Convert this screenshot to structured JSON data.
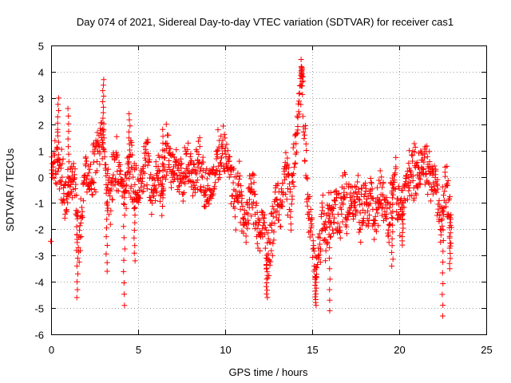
{
  "chart_data": {
    "type": "scatter",
    "title": "Day 074 of 2021, Sidereal Day-to-day VTEC variation (SDTVAR) for receiver cas1",
    "xlabel": "GPS time / hours",
    "ylabel": "SDTVAR / TECUs",
    "xlim": [
      0,
      25
    ],
    "ylim": [
      -6,
      5
    ],
    "xticks": [
      0,
      5,
      10,
      15,
      20,
      25
    ],
    "yticks": [
      -6,
      -5,
      -4,
      -3,
      -2,
      -1,
      0,
      1,
      2,
      3,
      4,
      5
    ],
    "grid": true,
    "marker": "+",
    "color": "#ff0000",
    "series": [
      {
        "name": "SDTVAR",
        "trend": [
          [
            0.0,
            0.3
          ],
          [
            0.2,
            0.8
          ],
          [
            0.4,
            0.6
          ],
          [
            0.6,
            0.1
          ],
          [
            0.8,
            -0.8
          ],
          [
            1.0,
            -0.3
          ],
          [
            1.2,
            0.2
          ],
          [
            1.4,
            -0.6
          ],
          [
            1.6,
            -2.6
          ],
          [
            1.8,
            -1.0
          ],
          [
            2.0,
            0.3
          ],
          [
            2.2,
            -0.3
          ],
          [
            2.4,
            0.3
          ],
          [
            2.6,
            0.7
          ],
          [
            2.8,
            1.2
          ],
          [
            3.0,
            1.6
          ],
          [
            3.2,
            -0.3
          ],
          [
            3.4,
            -0.8
          ],
          [
            3.6,
            0.2
          ],
          [
            3.8,
            0.6
          ],
          [
            4.0,
            0.0
          ],
          [
            4.2,
            -0.6
          ],
          [
            4.4,
            -0.2
          ],
          [
            4.6,
            0.4
          ],
          [
            4.8,
            -0.3
          ],
          [
            5.0,
            -0.6
          ],
          [
            5.2,
            0.2
          ],
          [
            5.4,
            0.7
          ],
          [
            5.6,
            0.3
          ],
          [
            5.8,
            -0.7
          ],
          [
            6.0,
            -0.3
          ],
          [
            6.2,
            0.5
          ],
          [
            6.4,
            -0.8
          ],
          [
            6.6,
            0.9
          ],
          [
            6.8,
            0.6
          ],
          [
            7.0,
            0.1
          ],
          [
            7.2,
            0.5
          ],
          [
            7.4,
            0.2
          ],
          [
            7.6,
            0.3
          ],
          [
            7.8,
            0.6
          ],
          [
            8.0,
            0.4
          ],
          [
            8.2,
            -0.2
          ],
          [
            8.4,
            0.2
          ],
          [
            8.6,
            0.5
          ],
          [
            8.8,
            -0.3
          ],
          [
            9.0,
            -0.5
          ],
          [
            9.2,
            -0.2
          ],
          [
            9.4,
            0.1
          ],
          [
            9.6,
            0.6
          ],
          [
            9.8,
            1.0
          ],
          [
            10.0,
            0.9
          ],
          [
            10.2,
            0.4
          ],
          [
            10.4,
            -0.3
          ],
          [
            10.6,
            -0.8
          ],
          [
            10.8,
            -0.2
          ],
          [
            11.0,
            -1.6
          ],
          [
            11.2,
            -1.9
          ],
          [
            11.4,
            -0.9
          ],
          [
            11.6,
            -0.6
          ],
          [
            11.8,
            -1.8
          ],
          [
            12.0,
            -2.4
          ],
          [
            12.2,
            -1.6
          ],
          [
            12.4,
            -3.2
          ],
          [
            12.6,
            -2.6
          ],
          [
            12.8,
            -1.6
          ],
          [
            13.0,
            -0.9
          ],
          [
            13.2,
            -1.4
          ],
          [
            13.4,
            0.3
          ],
          [
            13.6,
            -0.5
          ],
          [
            13.8,
            -1.0
          ],
          [
            14.0,
            1.0
          ],
          [
            14.2,
            2.5
          ],
          [
            14.4,
            3.8
          ],
          [
            14.6,
            1.2
          ],
          [
            14.8,
            -1.2
          ],
          [
            15.0,
            -2.4
          ],
          [
            15.2,
            -3.8
          ],
          [
            15.4,
            -2.8
          ],
          [
            15.6,
            -1.4
          ],
          [
            15.8,
            -2.6
          ],
          [
            16.0,
            -1.1
          ],
          [
            16.2,
            -1.8
          ],
          [
            16.4,
            -1.0
          ],
          [
            16.6,
            -1.5
          ],
          [
            16.8,
            -0.5
          ],
          [
            17.0,
            -1.3
          ],
          [
            17.2,
            -0.8
          ],
          [
            17.4,
            -1.0
          ],
          [
            17.6,
            -0.5
          ],
          [
            17.8,
            -1.6
          ],
          [
            18.0,
            -0.9
          ],
          [
            18.2,
            -1.4
          ],
          [
            18.4,
            -0.7
          ],
          [
            18.6,
            -1.8
          ],
          [
            18.8,
            -1.0
          ],
          [
            19.0,
            -0.5
          ],
          [
            19.2,
            -1.2
          ],
          [
            19.4,
            -1.8
          ],
          [
            19.6,
            -0.8
          ],
          [
            19.8,
            -0.2
          ],
          [
            20.0,
            -1.4
          ],
          [
            20.2,
            -1.0
          ],
          [
            20.4,
            -0.3
          ],
          [
            20.6,
            0.1
          ],
          [
            20.8,
            0.3
          ],
          [
            21.0,
            0.4
          ],
          [
            21.2,
            0.2
          ],
          [
            21.4,
            0.5
          ],
          [
            21.6,
            0.3
          ],
          [
            21.8,
            -0.3
          ],
          [
            22.0,
            0.2
          ],
          [
            22.2,
            -0.8
          ],
          [
            22.4,
            -2.0
          ],
          [
            22.6,
            -0.4
          ],
          [
            22.8,
            -0.9
          ],
          [
            23.0,
            -2.2
          ]
        ],
        "spikes": [
          [
            0.4,
            3.0
          ],
          [
            1.0,
            2.6
          ],
          [
            1.5,
            -4.6
          ],
          [
            3.0,
            3.7
          ],
          [
            3.2,
            -3.6
          ],
          [
            4.2,
            -4.9
          ],
          [
            4.5,
            2.4
          ],
          [
            4.8,
            -3.2
          ],
          [
            6.4,
            1.8
          ],
          [
            12.4,
            -4.6
          ],
          [
            14.4,
            4.2
          ],
          [
            15.2,
            -4.9
          ],
          [
            16.0,
            -5.1
          ],
          [
            19.6,
            -3.4
          ],
          [
            20.2,
            -2.6
          ],
          [
            22.5,
            -5.3
          ],
          [
            22.9,
            -3.5
          ]
        ]
      }
    ]
  }
}
